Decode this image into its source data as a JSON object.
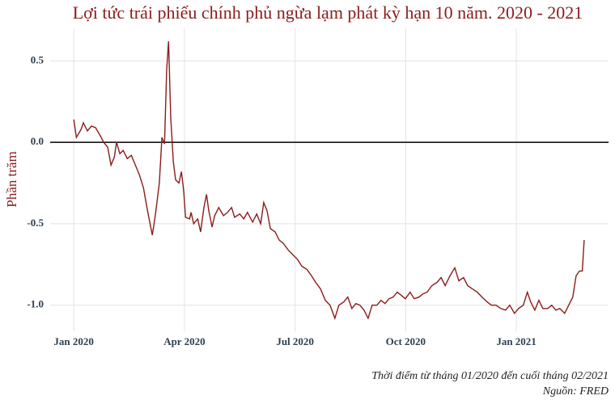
{
  "chart_data": {
    "type": "line",
    "title": "Lợi tức trái phiếu chính phủ ngừa lạm phát kỳ hạn 10 năm. 2020 - 2021",
    "y_label": "Phần trăm",
    "notes": [
      "Thời điểm từ tháng 01/2020 đến cuối tháng 02/2021",
      "Nguồn: FRED"
    ],
    "x": [
      0,
      0.07,
      0.2,
      0.26,
      0.37,
      0.48,
      0.59,
      0.72,
      0.81,
      0.92,
      1.01,
      1.1,
      1.16,
      1.25,
      1.34,
      1.45,
      1.56,
      1.67,
      1.78,
      1.89,
      2.0,
      2.13,
      2.21,
      2.32,
      2.39,
      2.46,
      2.52,
      2.57,
      2.63,
      2.7,
      2.76,
      2.85,
      2.92,
      2.98,
      3.03,
      3.14,
      3.18,
      3.25,
      3.36,
      3.44,
      3.53,
      3.6,
      3.66,
      3.75,
      3.82,
      3.93,
      4.06,
      4.17,
      4.28,
      4.36,
      4.5,
      4.61,
      4.71,
      4.85,
      4.96,
      5.07,
      5.15,
      5.24,
      5.33,
      5.46,
      5.57,
      5.68,
      5.81,
      5.94,
      6.07,
      6.18,
      6.32,
      6.45,
      6.56,
      6.69,
      6.82,
      6.95,
      7.08,
      7.19,
      7.32,
      7.43,
      7.54,
      7.65,
      7.76,
      7.87,
      7.98,
      8.09,
      8.22,
      8.33,
      8.44,
      8.55,
      8.66,
      8.77,
      8.88,
      8.99,
      9.12,
      9.23,
      9.36,
      9.47,
      9.58,
      9.71,
      9.85,
      9.96,
      10.07,
      10.2,
      10.33,
      10.44,
      10.57,
      10.68,
      10.81,
      10.94,
      11.07,
      11.21,
      11.32,
      11.45,
      11.58,
      11.71,
      11.82,
      11.95,
      12.06,
      12.19,
      12.3,
      12.39,
      12.5,
      12.61,
      12.72,
      12.85,
      12.96,
      13.07,
      13.18,
      13.31,
      13.42,
      13.53,
      13.62,
      13.71,
      13.79,
      13.84
    ],
    "series": [
      {
        "color": "#8b1c1c",
        "values": [
          0.14,
          0.03,
          0.08,
          0.12,
          0.07,
          0.1,
          0.09,
          0.04,
          0.0,
          -0.03,
          -0.14,
          -0.09,
          0.0,
          -0.07,
          -0.05,
          -0.1,
          -0.08,
          -0.14,
          -0.2,
          -0.28,
          -0.42,
          -0.57,
          -0.45,
          -0.25,
          0.03,
          -0.01,
          0.45,
          0.62,
          0.15,
          -0.12,
          -0.23,
          -0.25,
          -0.18,
          -0.3,
          -0.46,
          -0.47,
          -0.43,
          -0.5,
          -0.47,
          -0.55,
          -0.4,
          -0.32,
          -0.42,
          -0.52,
          -0.45,
          -0.4,
          -0.45,
          -0.43,
          -0.4,
          -0.46,
          -0.44,
          -0.47,
          -0.43,
          -0.49,
          -0.44,
          -0.5,
          -0.37,
          -0.42,
          -0.53,
          -0.55,
          -0.6,
          -0.62,
          -0.66,
          -0.69,
          -0.72,
          -0.76,
          -0.78,
          -0.82,
          -0.86,
          -0.9,
          -0.97,
          -1.0,
          -1.08,
          -1.0,
          -0.98,
          -0.95,
          -1.02,
          -0.99,
          -1.0,
          -1.03,
          -1.08,
          -1.0,
          -1.0,
          -0.97,
          -0.99,
          -0.96,
          -0.95,
          -0.92,
          -0.94,
          -0.96,
          -0.92,
          -0.96,
          -0.95,
          -0.93,
          -0.92,
          -0.88,
          -0.86,
          -0.83,
          -0.88,
          -0.82,
          -0.77,
          -0.85,
          -0.83,
          -0.88,
          -0.9,
          -0.92,
          -0.95,
          -0.98,
          -1.0,
          -1.0,
          -1.02,
          -1.03,
          -1.0,
          -1.05,
          -1.02,
          -1.0,
          -0.92,
          -0.98,
          -1.03,
          -0.97,
          -1.02,
          -1.02,
          -1.0,
          -1.03,
          -1.02,
          -1.05,
          -1.0,
          -0.95,
          -0.82,
          -0.79,
          -0.79,
          -0.6
        ]
      }
    ],
    "xlim": [
      -0.64,
      14.5
    ],
    "xticks": [
      {
        "value": 0,
        "label": "Jan 2020"
      },
      {
        "value": 3,
        "label": "Apr 2020"
      },
      {
        "value": 6,
        "label": "Jul 2020"
      },
      {
        "value": 9,
        "label": "Oct 2020"
      },
      {
        "value": 12,
        "label": "Jan 2021"
      }
    ],
    "ylim": [
      -1.16,
      0.7
    ],
    "yticks": [
      0.5,
      {
        "value": 0,
        "label": "0.0"
      },
      -0.5,
      {
        "value": -1,
        "label": "-1.0"
      }
    ],
    "reference_line": 0,
    "grid": true
  }
}
